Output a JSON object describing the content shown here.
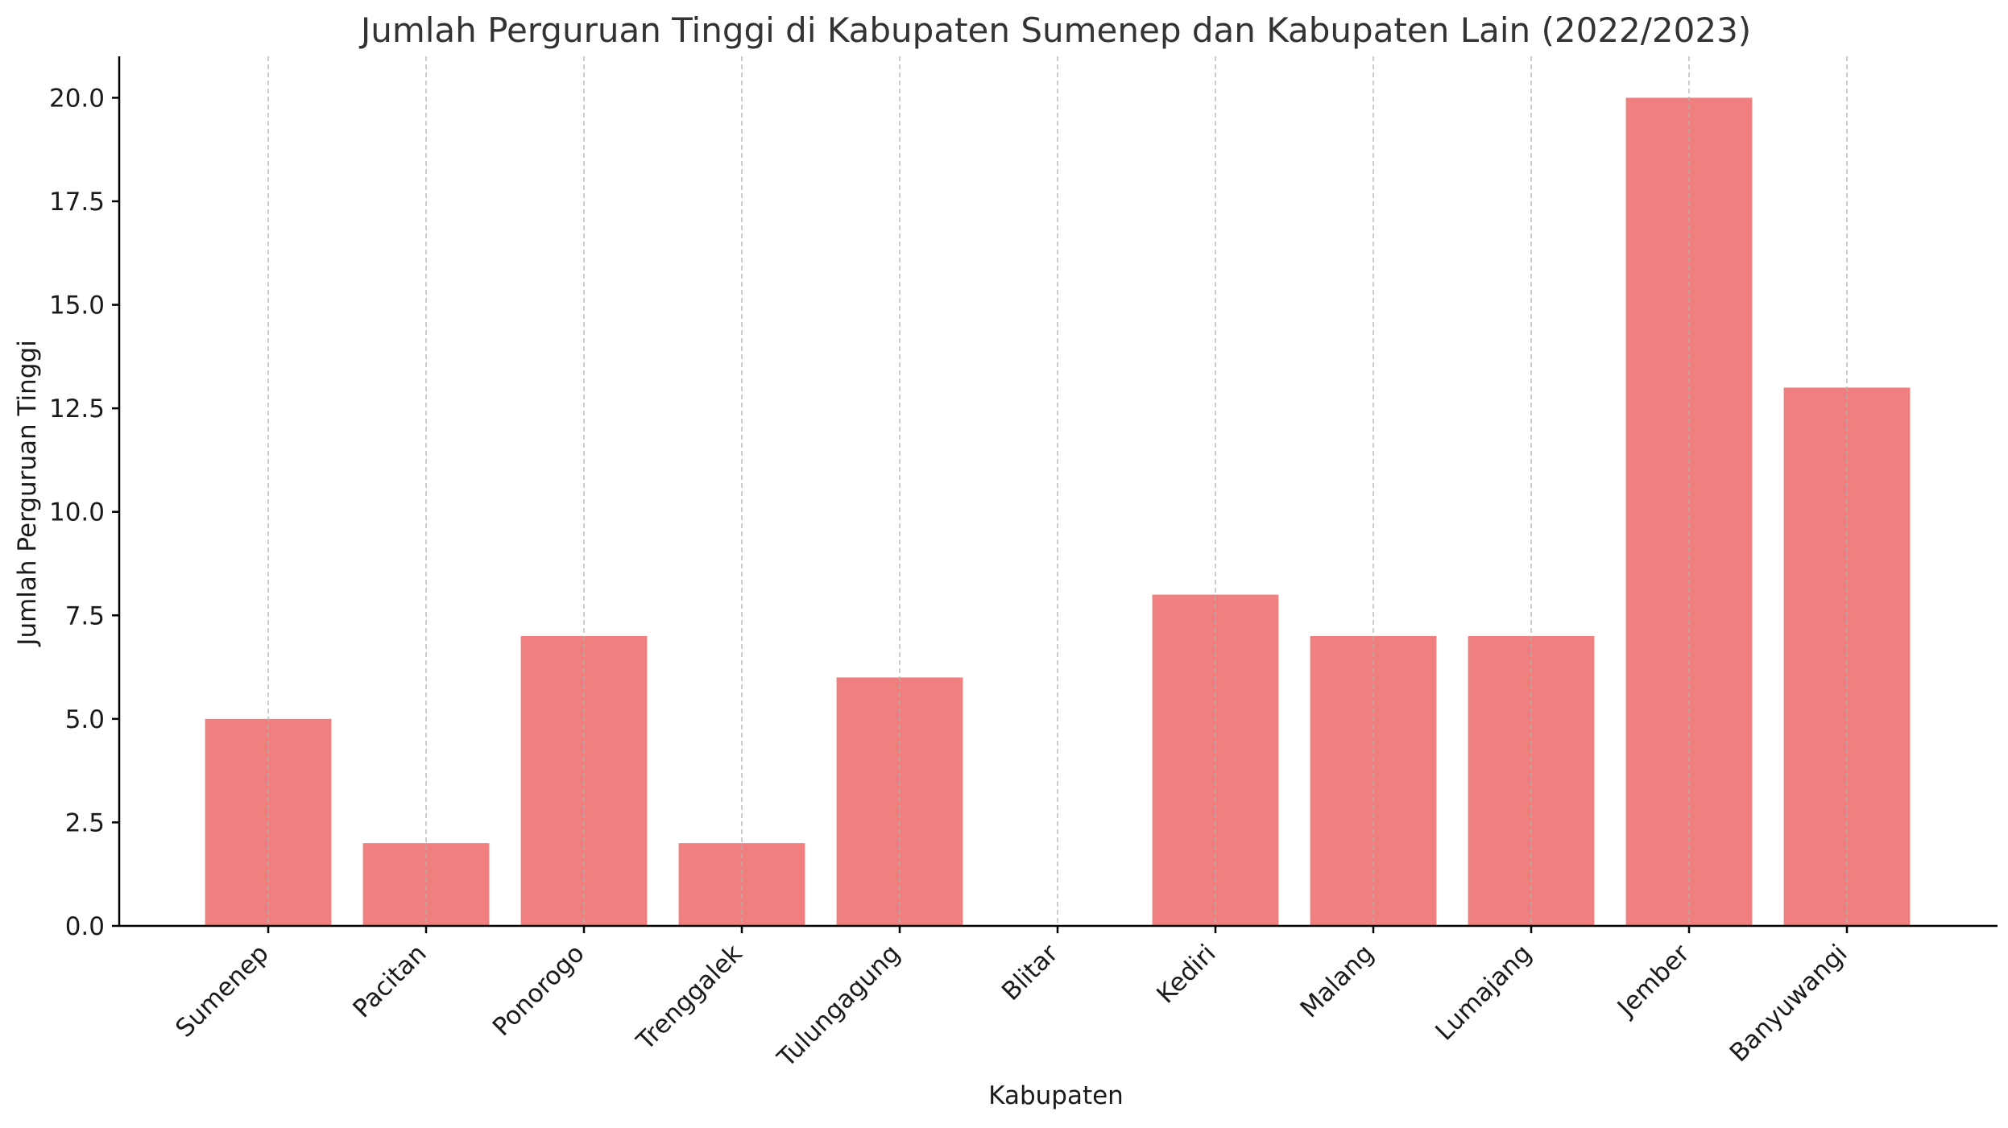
{
  "chart_data": {
    "type": "bar",
    "title": "Jumlah Perguruan Tinggi di Kabupaten Sumenep dan Kabupaten Lain (2022/2023)",
    "xlabel": "Kabupaten",
    "ylabel": "Jumlah Perguruan Tinggi",
    "categories": [
      "Sumenep",
      "Pacitan",
      "Ponorogo",
      "Trenggalek",
      "Tulungagung",
      "Blitar",
      "Kediri",
      "Malang",
      "Lumajang",
      "Jember",
      "Banyuwangi"
    ],
    "values": [
      5,
      2,
      7,
      2,
      6,
      0,
      8,
      7,
      7,
      20,
      13
    ],
    "ylim": [
      0,
      21
    ],
    "yticks": [
      "0.0",
      "2.5",
      "5.0",
      "7.5",
      "10.0",
      "12.5",
      "15.0",
      "17.5",
      "20.0"
    ],
    "grid": "x-dashed",
    "bar_color": "#f08080"
  }
}
